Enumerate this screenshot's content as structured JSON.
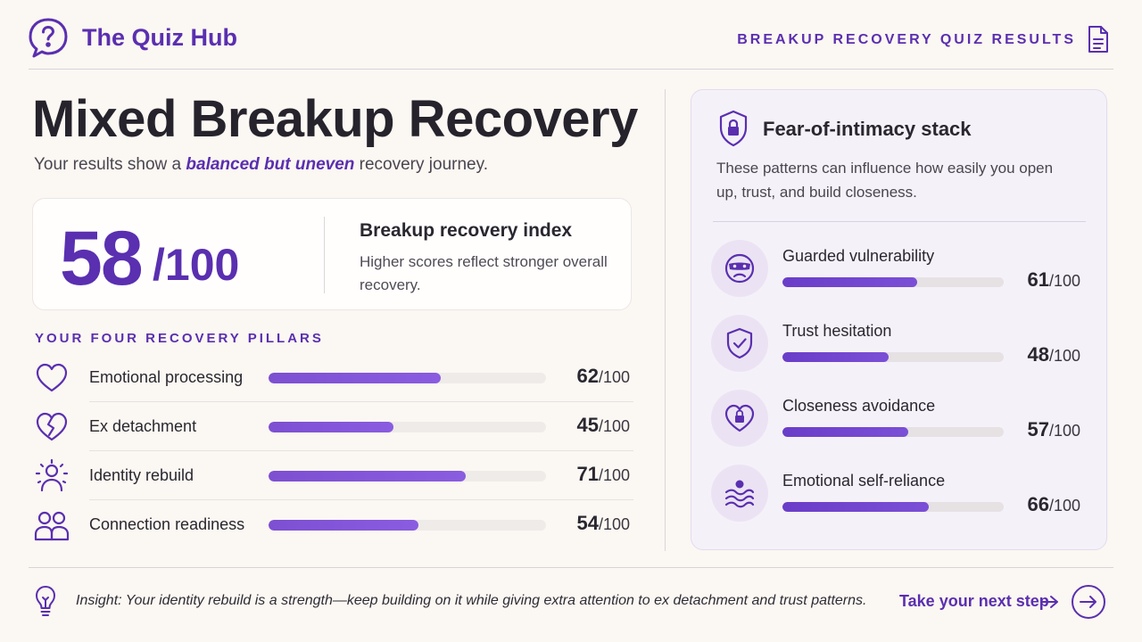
{
  "header": {
    "brand": "The Quiz Hub",
    "results_label": "BREAKUP RECOVERY QUIZ RESULTS"
  },
  "hero": {
    "title": "Mixed Breakup Recovery",
    "subtitle_before": "Your results show a ",
    "subtitle_emphasis": "balanced but uneven",
    "subtitle_after": " recovery journey."
  },
  "score_card": {
    "score": "58",
    "denominator": "/100",
    "index_title": "Breakup recovery index",
    "index_desc": "Higher scores reflect stronger overall recovery."
  },
  "pillars": {
    "heading": "YOUR FOUR RECOVERY PILLARS",
    "items": [
      {
        "label": "Emotional processing",
        "score": "62",
        "value": 62,
        "icon": "heart-icon"
      },
      {
        "label": "Ex detachment",
        "score": "45",
        "value": 45,
        "icon": "broken-heart-icon"
      },
      {
        "label": "Identity rebuild",
        "score": "71",
        "value": 71,
        "icon": "person-rays-icon"
      },
      {
        "label": "Connection readiness",
        "score": "54",
        "value": 54,
        "icon": "people-icon"
      }
    ],
    "denominator": "/100"
  },
  "intimacy": {
    "title": "Fear-of-intimacy stack",
    "description": "These patterns can influence how easily you open up, trust, and build closeness.",
    "items": [
      {
        "label": "Guarded vulnerability",
        "score": "61",
        "value": 61,
        "icon": "masked-face-icon"
      },
      {
        "label": "Trust hesitation",
        "score": "48",
        "value": 48,
        "icon": "shield-check-icon"
      },
      {
        "label": "Closeness avoidance",
        "score": "57",
        "value": 57,
        "icon": "heart-lock-icon"
      },
      {
        "label": "Emotional self-reliance",
        "score": "66",
        "value": 66,
        "icon": "waves-icon"
      }
    ],
    "denominator": "/100"
  },
  "footer": {
    "insight": "Insight: Your identity rebuild is a strength—keep building on it while giving extra attention to ex detachment and trust patterns.",
    "next_step": "Take your next step"
  },
  "colors": {
    "accent": "#5a2fb0",
    "bar_fill": "#7d4fd1",
    "background": "#fbf7f2",
    "panel": "#f5f1f9"
  }
}
